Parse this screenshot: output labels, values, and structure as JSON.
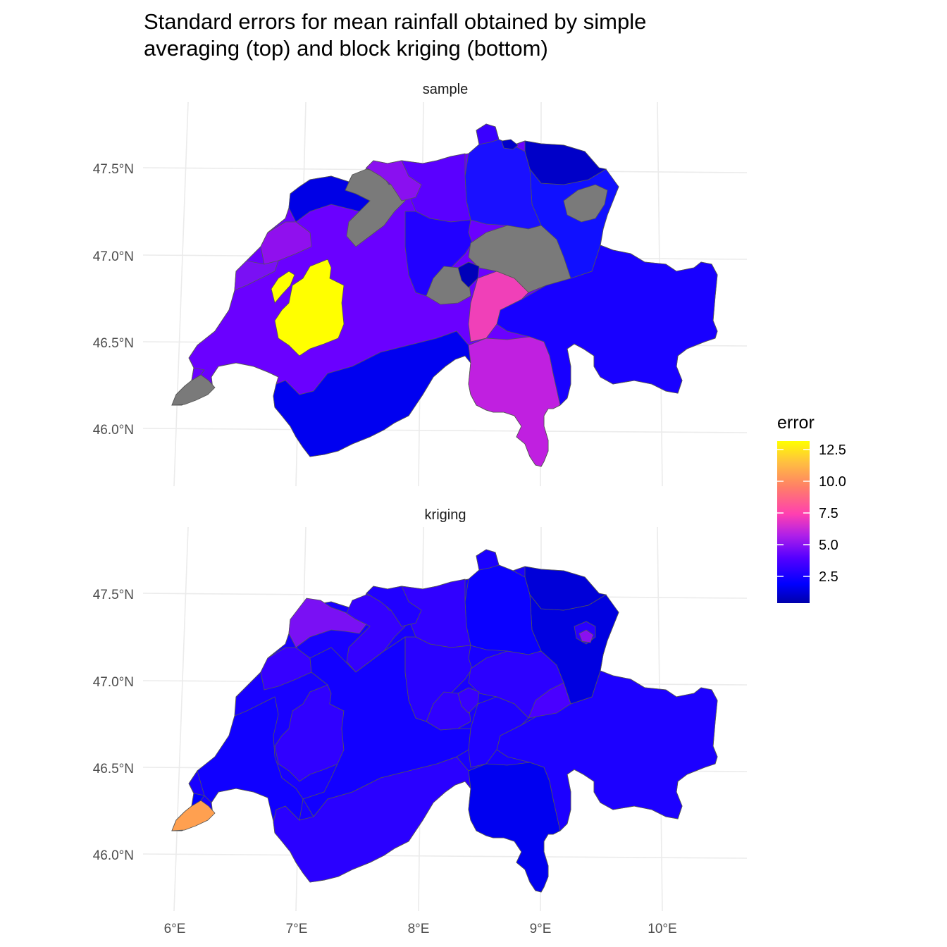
{
  "title": {
    "line1": "Standard errors for mean rainfall obtained by simple",
    "line2": "averaging (top) and block kriging (bottom)"
  },
  "panels": [
    {
      "label": "sample"
    },
    {
      "label": "kriging"
    }
  ],
  "axes": {
    "y_ticks": [
      "47.5°N",
      "47.0°N",
      "46.5°N",
      "46.0°N"
    ],
    "x_ticks": [
      "6°E",
      "7°E",
      "8°E",
      "9°E",
      "10°E"
    ]
  },
  "legend": {
    "title": "error",
    "ticks": [
      "12.5",
      "10.0",
      "7.5",
      "5.0",
      "2.5"
    ],
    "gradient": [
      "#0000aa",
      "#0000ff",
      "#6a00ff",
      "#c020e0",
      "#ff40b0",
      "#ff8060",
      "#ffc040",
      "#ffff00"
    ]
  },
  "colors": {
    "missing": "#7a7a7a",
    "grid": "#ebebeb",
    "border": "#555555"
  },
  "chart_data": {
    "type": "choropleth",
    "x_label": "",
    "y_label": "",
    "fill_label": "error",
    "fill_range": [
      0.5,
      13.5
    ],
    "panels": [
      "sample",
      "kriging"
    ]
  }
}
